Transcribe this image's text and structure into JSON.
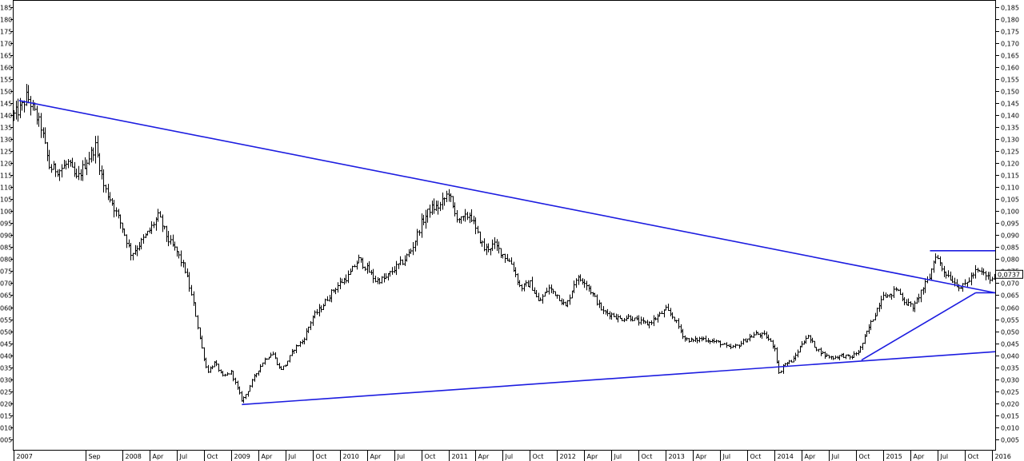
{
  "chart_data": {
    "type": "ohlc",
    "title": "",
    "xlabel": "",
    "ylabel": "",
    "x_range": [
      2007.0,
      2016.03
    ],
    "left_axis": {
      "ylim": [
        0,
        188
      ],
      "ticks": [
        "005",
        "010",
        "015",
        "020",
        "025",
        "030",
        "035",
        "040",
        "045",
        "050",
        "055",
        "060",
        "065",
        "070",
        "075",
        "080",
        "085",
        "090",
        "095",
        "100",
        "105",
        "110",
        "115",
        "120",
        "125",
        "130",
        "135",
        "140",
        "145",
        "150",
        "155",
        "160",
        "165",
        "170",
        "175",
        "180",
        "185"
      ]
    },
    "right_axis": {
      "ylim": [
        0,
        0.188
      ],
      "ticks": [
        "0,005",
        "0,010",
        "0,015",
        "0,020",
        "0,025",
        "0,030",
        "0,035",
        "0,040",
        "0,045",
        "0,050",
        "0,055",
        "0,060",
        "0,065",
        "0,070",
        "0,075",
        "0,080",
        "0,085",
        "0,090",
        "0,095",
        "0,100",
        "0,105",
        "0,110",
        "0,115",
        "0,120",
        "0,125",
        "0,130",
        "0,135",
        "0,140",
        "0,145",
        "0,150",
        "0,155",
        "0,160",
        "0,165",
        "0,170",
        "0,175",
        "0,180",
        "0,185"
      ]
    },
    "x_ticks": [
      {
        "label": "2007",
        "x": 2007.0
      },
      {
        "label": "Sep",
        "x": 2007.66
      },
      {
        "label": "2008",
        "x": 2008.0
      },
      {
        "label": "Apr",
        "x": 2008.25
      },
      {
        "label": "Jul",
        "x": 2008.5
      },
      {
        "label": "Oct",
        "x": 2008.75
      },
      {
        "label": "2009",
        "x": 2009.0
      },
      {
        "label": "Apr",
        "x": 2009.25
      },
      {
        "label": "Jul",
        "x": 2009.5
      },
      {
        "label": "Oct",
        "x": 2009.75
      },
      {
        "label": "2010",
        "x": 2010.0
      },
      {
        "label": "Apr",
        "x": 2010.25
      },
      {
        "label": "Jul",
        "x": 2010.5
      },
      {
        "label": "Oct",
        "x": 2010.75
      },
      {
        "label": "2011",
        "x": 2011.0
      },
      {
        "label": "Apr",
        "x": 2011.25
      },
      {
        "label": "Jul",
        "x": 2011.5
      },
      {
        "label": "Oct",
        "x": 2011.75
      },
      {
        "label": "2012",
        "x": 2012.0
      },
      {
        "label": "Apr",
        "x": 2012.25
      },
      {
        "label": "Jul",
        "x": 2012.5
      },
      {
        "label": "Oct",
        "x": 2012.75
      },
      {
        "label": "2013",
        "x": 2013.0
      },
      {
        "label": "Apr",
        "x": 2013.25
      },
      {
        "label": "Jul",
        "x": 2013.5
      },
      {
        "label": "Oct",
        "x": 2013.75
      },
      {
        "label": "2014",
        "x": 2014.0
      },
      {
        "label": "Apr",
        "x": 2014.25
      },
      {
        "label": "Jul",
        "x": 2014.5
      },
      {
        "label": "Oct",
        "x": 2014.75
      },
      {
        "label": "2015",
        "x": 2015.0
      },
      {
        "label": "Apr",
        "x": 2015.25
      },
      {
        "label": "Jul",
        "x": 2015.5
      },
      {
        "label": "Oct",
        "x": 2015.75
      },
      {
        "label": "2016",
        "x": 2016.0
      }
    ],
    "last_value_label": "0,0737",
    "last_value": 73.7,
    "price_path": [
      [
        2007.0,
        140
      ],
      [
        2007.07,
        143
      ],
      [
        2007.12,
        148
      ],
      [
        2007.18,
        142
      ],
      [
        2007.25,
        135
      ],
      [
        2007.33,
        118
      ],
      [
        2007.42,
        117
      ],
      [
        2007.5,
        120
      ],
      [
        2007.58,
        113
      ],
      [
        2007.66,
        120
      ],
      [
        2007.75,
        127
      ],
      [
        2007.83,
        110
      ],
      [
        2007.9,
        104
      ],
      [
        2008.0,
        93
      ],
      [
        2008.08,
        82
      ],
      [
        2008.17,
        87
      ],
      [
        2008.25,
        92
      ],
      [
        2008.33,
        98
      ],
      [
        2008.42,
        88
      ],
      [
        2008.5,
        83
      ],
      [
        2008.58,
        75
      ],
      [
        2008.66,
        60
      ],
      [
        2008.72,
        45
      ],
      [
        2008.78,
        33
      ],
      [
        2008.85,
        37
      ],
      [
        2008.92,
        31
      ],
      [
        2009.0,
        33
      ],
      [
        2009.05,
        27
      ],
      [
        2009.1,
        21
      ],
      [
        2009.15,
        25
      ],
      [
        2009.2,
        30
      ],
      [
        2009.3,
        38
      ],
      [
        2009.38,
        41
      ],
      [
        2009.45,
        34
      ],
      [
        2009.5,
        36
      ],
      [
        2009.58,
        43
      ],
      [
        2009.66,
        46
      ],
      [
        2009.75,
        56
      ],
      [
        2009.83,
        60
      ],
      [
        2009.92,
        66
      ],
      [
        2010.0,
        70
      ],
      [
        2010.08,
        73
      ],
      [
        2010.17,
        80
      ],
      [
        2010.25,
        76
      ],
      [
        2010.33,
        71
      ],
      [
        2010.42,
        72
      ],
      [
        2010.5,
        76
      ],
      [
        2010.58,
        79
      ],
      [
        2010.66,
        84
      ],
      [
        2010.75,
        95
      ],
      [
        2010.83,
        101
      ],
      [
        2010.92,
        102
      ],
      [
        2011.0,
        108
      ],
      [
        2011.05,
        99
      ],
      [
        2011.12,
        96
      ],
      [
        2011.2,
        99
      ],
      [
        2011.25,
        92
      ],
      [
        2011.33,
        84
      ],
      [
        2011.42,
        86
      ],
      [
        2011.5,
        82
      ],
      [
        2011.58,
        78
      ],
      [
        2011.66,
        68
      ],
      [
        2011.75,
        70
      ],
      [
        2011.83,
        62
      ],
      [
        2011.92,
        68
      ],
      [
        2012.0,
        65
      ],
      [
        2012.08,
        60
      ],
      [
        2012.17,
        72
      ],
      [
        2012.25,
        71
      ],
      [
        2012.33,
        65
      ],
      [
        2012.42,
        58
      ],
      [
        2012.5,
        57
      ],
      [
        2012.58,
        55
      ],
      [
        2012.66,
        56
      ],
      [
        2012.75,
        54
      ],
      [
        2012.83,
        53
      ],
      [
        2012.92,
        56
      ],
      [
        2013.0,
        59
      ],
      [
        2013.08,
        55
      ],
      [
        2013.17,
        47
      ],
      [
        2013.25,
        46
      ],
      [
        2013.33,
        47
      ],
      [
        2013.42,
        46
      ],
      [
        2013.5,
        45
      ],
      [
        2013.58,
        43
      ],
      [
        2013.66,
        44
      ],
      [
        2013.75,
        47
      ],
      [
        2013.83,
        49
      ],
      [
        2013.92,
        48
      ],
      [
        2014.0,
        43
      ],
      [
        2014.04,
        32
      ],
      [
        2014.08,
        36
      ],
      [
        2014.17,
        38
      ],
      [
        2014.25,
        45
      ],
      [
        2014.3,
        48
      ],
      [
        2014.38,
        43
      ],
      [
        2014.46,
        40
      ],
      [
        2014.54,
        39
      ],
      [
        2014.62,
        40
      ],
      [
        2014.7,
        39
      ],
      [
        2014.78,
        42
      ],
      [
        2014.86,
        51
      ],
      [
        2014.93,
        58
      ],
      [
        2015.0,
        66
      ],
      [
        2015.05,
        64
      ],
      [
        2015.12,
        68
      ],
      [
        2015.2,
        62
      ],
      [
        2015.28,
        60
      ],
      [
        2015.35,
        67
      ],
      [
        2015.42,
        72
      ],
      [
        2015.48,
        82
      ],
      [
        2015.54,
        76
      ],
      [
        2015.6,
        73
      ],
      [
        2015.66,
        70
      ],
      [
        2015.72,
        68
      ],
      [
        2015.78,
        71
      ],
      [
        2015.85,
        75
      ],
      [
        2015.92,
        74
      ],
      [
        2016.0,
        71
      ],
      [
        2016.03,
        73.7
      ]
    ],
    "trendlines": [
      {
        "from": [
          2007.05,
          146
        ],
        "to": [
          2016.03,
          66
        ]
      },
      {
        "from": [
          2009.1,
          19.5
        ],
        "to": [
          2016.03,
          41.5
        ]
      },
      {
        "from": [
          2014.8,
          38
        ],
        "to": [
          2015.85,
          66
        ]
      },
      {
        "from": [
          2015.43,
          83.5
        ],
        "to": [
          2016.03,
          83.5
        ]
      },
      {
        "from": [
          2015.85,
          66
        ],
        "to": [
          2016.03,
          66
        ]
      }
    ],
    "colors": {
      "trendline": "#1c1ce0",
      "bars": "#000000",
      "background": "#ffffff"
    }
  }
}
